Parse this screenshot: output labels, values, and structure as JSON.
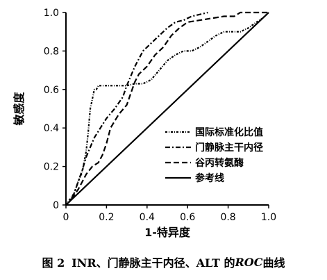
{
  "chart_data": {
    "type": "line",
    "xlabel": "1-特异度",
    "ylabel": "敏感度",
    "xlim": [
      0,
      1.0
    ],
    "ylim": [
      0,
      1.0
    ],
    "x_ticks": [
      "0",
      "0.2",
      "0.4",
      "0.6",
      "0.8",
      "1.0"
    ],
    "y_ticks": [
      "0",
      "0.2",
      "0.4",
      "0.6",
      "0.8",
      "1.0"
    ],
    "grid": false,
    "legend_position": "lower-right",
    "series": [
      {
        "name": "国际标准化比值",
        "dash": "3 2 1 2",
        "points": [
          [
            0,
            0
          ],
          [
            0.02,
            0.03
          ],
          [
            0.04,
            0.06
          ],
          [
            0.06,
            0.12
          ],
          [
            0.08,
            0.17
          ],
          [
            0.1,
            0.28
          ],
          [
            0.11,
            0.38
          ],
          [
            0.12,
            0.5
          ],
          [
            0.13,
            0.55
          ],
          [
            0.14,
            0.6
          ],
          [
            0.15,
            0.6
          ],
          [
            0.16,
            0.62
          ],
          [
            0.2,
            0.62
          ],
          [
            0.24,
            0.62
          ],
          [
            0.3,
            0.62
          ],
          [
            0.34,
            0.63
          ],
          [
            0.38,
            0.63
          ],
          [
            0.42,
            0.65
          ],
          [
            0.46,
            0.7
          ],
          [
            0.5,
            0.75
          ],
          [
            0.54,
            0.78
          ],
          [
            0.58,
            0.8
          ],
          [
            0.62,
            0.8
          ],
          [
            0.66,
            0.82
          ],
          [
            0.7,
            0.85
          ],
          [
            0.74,
            0.88
          ],
          [
            0.78,
            0.9
          ],
          [
            0.82,
            0.9
          ],
          [
            0.86,
            0.9
          ],
          [
            0.9,
            0.92
          ],
          [
            0.94,
            0.95
          ],
          [
            0.97,
            0.97
          ],
          [
            1.0,
            1.0
          ]
        ]
      },
      {
        "name": "门静脉主干内径",
        "dash": "7 3 2 3",
        "points": [
          [
            0,
            0
          ],
          [
            0.02,
            0.02
          ],
          [
            0.04,
            0.06
          ],
          [
            0.06,
            0.12
          ],
          [
            0.08,
            0.18
          ],
          [
            0.1,
            0.25
          ],
          [
            0.12,
            0.3
          ],
          [
            0.14,
            0.35
          ],
          [
            0.17,
            0.4
          ],
          [
            0.2,
            0.45
          ],
          [
            0.24,
            0.5
          ],
          [
            0.28,
            0.56
          ],
          [
            0.3,
            0.62
          ],
          [
            0.32,
            0.67
          ],
          [
            0.34,
            0.72
          ],
          [
            0.36,
            0.76
          ],
          [
            0.38,
            0.8
          ],
          [
            0.42,
            0.84
          ],
          [
            0.46,
            0.88
          ],
          [
            0.5,
            0.92
          ],
          [
            0.54,
            0.95
          ],
          [
            0.58,
            0.96
          ],
          [
            0.62,
            0.98
          ],
          [
            0.66,
            0.99
          ],
          [
            0.7,
            1.0
          ]
        ]
      },
      {
        "name": "谷丙转氨酶",
        "dash": "8 4",
        "points": [
          [
            0,
            0
          ],
          [
            0.02,
            0.02
          ],
          [
            0.04,
            0.05
          ],
          [
            0.06,
            0.08
          ],
          [
            0.08,
            0.12
          ],
          [
            0.1,
            0.16
          ],
          [
            0.13,
            0.2
          ],
          [
            0.16,
            0.22
          ],
          [
            0.18,
            0.26
          ],
          [
            0.2,
            0.32
          ],
          [
            0.22,
            0.4
          ],
          [
            0.26,
            0.47
          ],
          [
            0.3,
            0.52
          ],
          [
            0.32,
            0.58
          ],
          [
            0.34,
            0.64
          ],
          [
            0.36,
            0.68
          ],
          [
            0.4,
            0.72
          ],
          [
            0.44,
            0.78
          ],
          [
            0.48,
            0.82
          ],
          [
            0.52,
            0.88
          ],
          [
            0.56,
            0.92
          ],
          [
            0.6,
            0.95
          ],
          [
            0.66,
            0.96
          ],
          [
            0.72,
            0.97
          ],
          [
            0.78,
            0.98
          ],
          [
            0.83,
            0.98
          ],
          [
            0.86,
            1.0
          ],
          [
            0.9,
            1.0
          ],
          [
            0.95,
            1.0
          ],
          [
            1.0,
            1.0
          ]
        ]
      },
      {
        "name": "参考线",
        "dash": "",
        "points": [
          [
            0,
            0
          ],
          [
            1.0,
            1.0
          ]
        ]
      }
    ]
  },
  "caption": {
    "figure": "图 2",
    "prefix": "INR、门静脉主干内径、ALT 的 ",
    "italic": "ROC",
    "suffix": " 曲线"
  }
}
